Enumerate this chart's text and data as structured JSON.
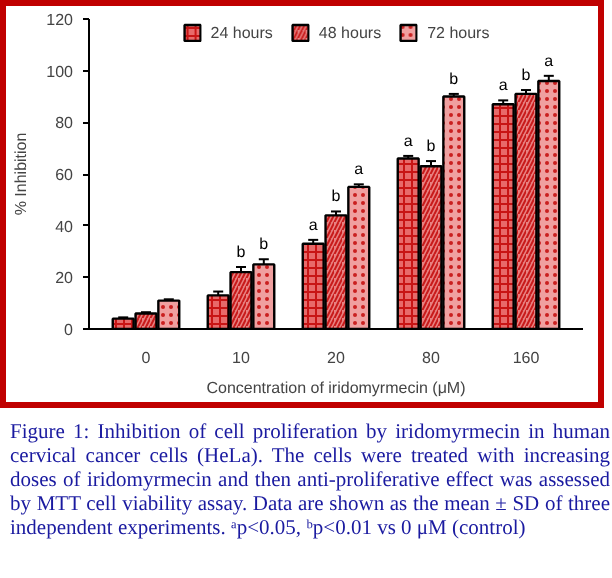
{
  "chart_data": {
    "type": "bar",
    "xlabel": "Concentration of iridomyrmecin (μM)",
    "ylabel": "% Inhibition",
    "categories": [
      "0",
      "10",
      "20",
      "80",
      "160"
    ],
    "ylim": [
      0,
      120
    ],
    "yticks": [
      0,
      20,
      40,
      60,
      80,
      100,
      120
    ],
    "grid": false,
    "legend": "top",
    "series": [
      {
        "name": "24 hours",
        "color": "#e86a6a",
        "values": [
          4,
          13,
          33,
          66,
          87
        ],
        "errors": [
          0.5,
          1.5,
          1.5,
          1,
          1.5
        ],
        "value_labels": [
          null,
          null,
          "a",
          "a",
          "a"
        ]
      },
      {
        "name": "48 hours",
        "color": "#e88080",
        "values": [
          6,
          22,
          44,
          63,
          91
        ],
        "errors": [
          0.5,
          2,
          1.5,
          2,
          1.5
        ],
        "value_labels": [
          null,
          "b",
          "b",
          "b",
          "b"
        ]
      },
      {
        "name": "72 hours",
        "color": "#f0a0a0",
        "values": [
          11,
          25,
          55,
          90,
          96
        ],
        "errors": [
          0.5,
          2,
          1,
          1,
          2
        ],
        "value_labels": [
          null,
          "b",
          "a",
          "b",
          "a"
        ]
      }
    ],
    "annotations": [
      "Figure 1: Inhibition of cell proliferation by iridomyrmecin in human cervical cancer cells (HeLa). The cells were treated with increasing doses of iridomyrmecin and then anti-proliferative effect was assessed by MTT cell viability assay. Data are shown as the mean ± SD of three independent experiments. ᵃp<0.05, ᵇp<0.01 vs 0 μM (control)"
    ]
  }
}
